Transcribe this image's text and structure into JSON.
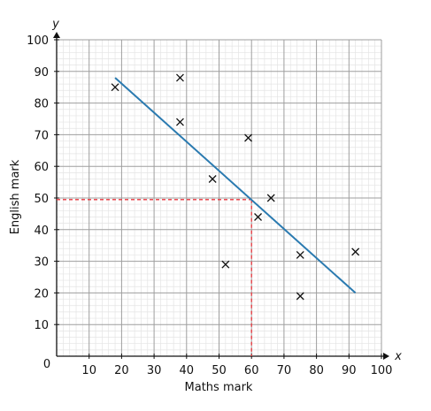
{
  "chart_data": {
    "type": "scatter",
    "title": "",
    "xlabel": "Maths mark",
    "ylabel": "English mark",
    "x_axis_letter": "x",
    "y_axis_letter": "y",
    "origin_label": "0",
    "xlim": [
      0,
      100
    ],
    "ylim": [
      0,
      100
    ],
    "x_ticks": [
      10,
      20,
      30,
      40,
      50,
      60,
      70,
      80,
      90,
      100
    ],
    "y_ticks": [
      10,
      20,
      30,
      40,
      50,
      60,
      70,
      80,
      90,
      100
    ],
    "grid": {
      "major": 10,
      "minor": 2
    },
    "points": [
      {
        "x": 18,
        "y": 85
      },
      {
        "x": 38,
        "y": 88
      },
      {
        "x": 38,
        "y": 74
      },
      {
        "x": 48,
        "y": 56
      },
      {
        "x": 52,
        "y": 29
      },
      {
        "x": 59,
        "y": 69
      },
      {
        "x": 62,
        "y": 44
      },
      {
        "x": 66,
        "y": 50
      },
      {
        "x": 75,
        "y": 32
      },
      {
        "x": 75,
        "y": 19
      },
      {
        "x": 92,
        "y": 33
      }
    ],
    "line_of_best_fit": {
      "x1": 18,
      "y1": 88,
      "x2": 92,
      "y2": 20
    },
    "reading_line": {
      "x": 60,
      "y": 49.5
    },
    "colors": {
      "fit_line": "#2a7ab0",
      "reading_line": "#e8363c",
      "points": "#111111",
      "major_grid": "#9e9e9e",
      "minor_grid": "#e4e4e4"
    }
  }
}
